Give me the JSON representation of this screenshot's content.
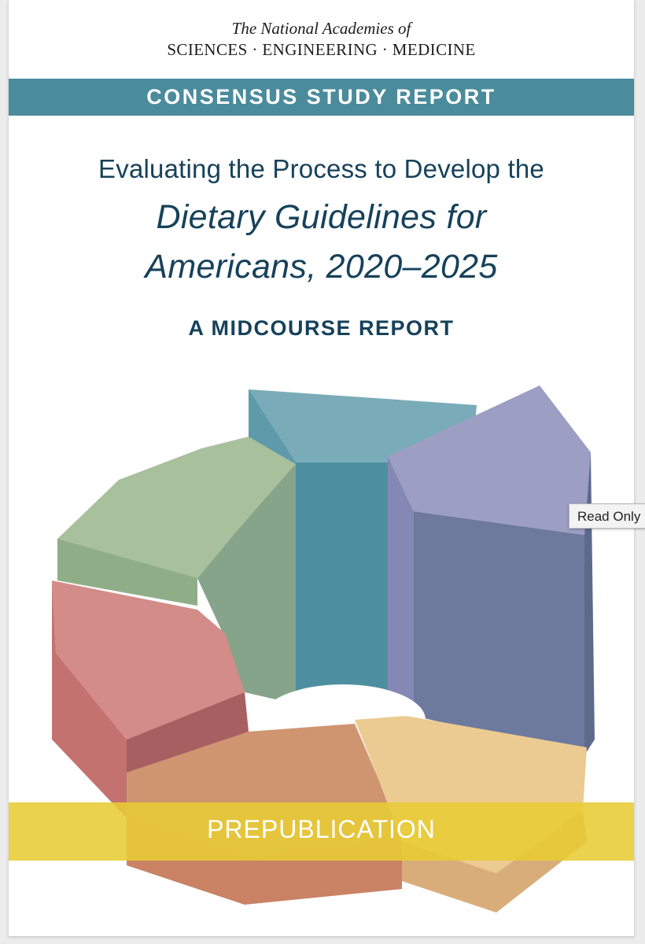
{
  "publisher": {
    "line1": "The National Academies of",
    "line2": "SCIENCES · ENGINEERING · MEDICINE"
  },
  "banner": "CONSENSUS STUDY REPORT",
  "title": {
    "line1": "Evaluating the Process to Develop the",
    "line2": "Dietary Guidelines for",
    "line3": "Americans, 2020–2025"
  },
  "subtitle": "A MIDCOURSE REPORT",
  "prepublication": "PREPUBLICATION",
  "tooltip": "Read Only",
  "colors": {
    "banner": "#4a8b9c",
    "title": "#16415a",
    "band": "#e8cc34",
    "teal": "#6fa5b1",
    "lavender": "#9a9cc0",
    "sage": "#a4bc98",
    "coral": "#d18a84",
    "peach": "#cf9670",
    "wheat": "#e9c98e"
  }
}
